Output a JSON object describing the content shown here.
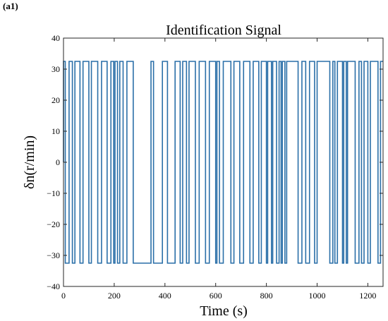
{
  "panel_label": "(a1)",
  "chart_data": {
    "type": "line",
    "title": "Identification Signal",
    "xlabel": "Time (s)",
    "ylabel": "δn(r/min)",
    "xlim": [
      0,
      1260
    ],
    "ylim": [
      -40,
      40
    ],
    "xticks": [
      0,
      200,
      400,
      600,
      800,
      1000,
      1200
    ],
    "yticks": [
      -40,
      -30,
      -20,
      -10,
      0,
      10,
      20,
      30,
      40
    ],
    "xtick_labels": [
      "0",
      "200",
      "400",
      "600",
      "800",
      "1000",
      "1200"
    ],
    "ytick_labels": [
      "−40",
      "−30",
      "−20",
      "−10",
      "0",
      "10",
      "20",
      "30",
      "40"
    ],
    "grid": false,
    "high": 32.5,
    "low": -32.5,
    "color": "#2a6fa8",
    "series": [
      {
        "switch_times": [
          0,
          7,
          22,
          35,
          45,
          65,
          77,
          100,
          110,
          135,
          150,
          172,
          187,
          198,
          203,
          213,
          222,
          235,
          250,
          275,
          345,
          355,
          390,
          410,
          440,
          460,
          470,
          485,
          495,
          520,
          535,
          560,
          575,
          600,
          605,
          615,
          630,
          660,
          672,
          695,
          710,
          735,
          748,
          770,
          780,
          800,
          805,
          820,
          825,
          840,
          850,
          858,
          863,
          873,
          880,
          925,
          940,
          955,
          970,
          990,
          1000,
          1050,
          1062,
          1070,
          1080,
          1100,
          1105,
          1115,
          1120,
          1150,
          1165,
          1175,
          1185,
          1200,
          1210,
          1240,
          1250,
          1260
        ],
        "start_level": "high"
      }
    ]
  }
}
